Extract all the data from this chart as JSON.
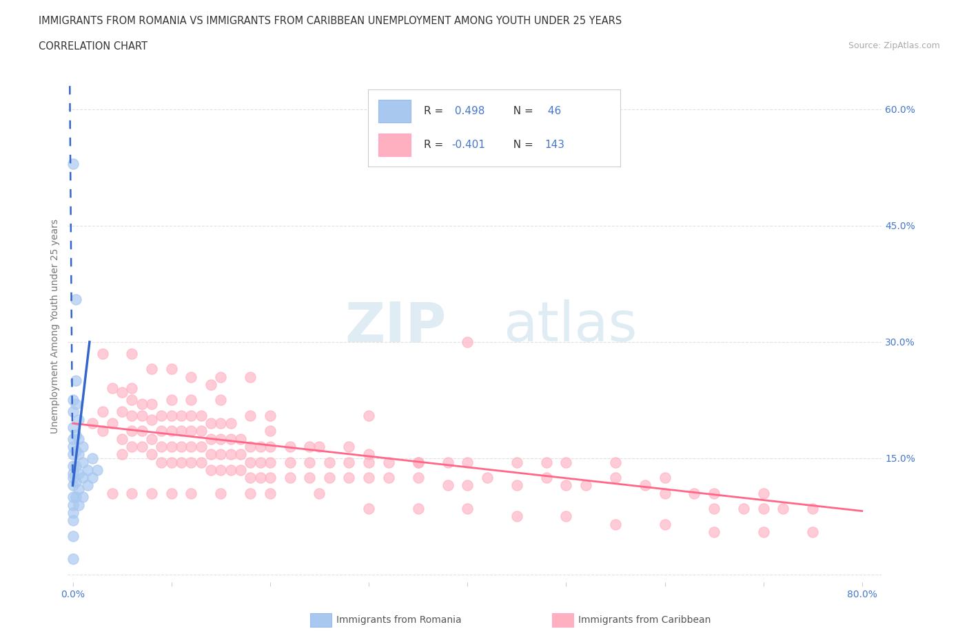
{
  "title_line1": "IMMIGRANTS FROM ROMANIA VS IMMIGRANTS FROM CARIBBEAN UNEMPLOYMENT AMONG YOUTH UNDER 25 YEARS",
  "title_line2": "CORRELATION CHART",
  "source_text": "Source: ZipAtlas.com",
  "ylabel": "Unemployment Among Youth under 25 years",
  "xlim": [
    -0.005,
    0.82
  ],
  "ylim": [
    -0.01,
    0.65
  ],
  "xtick_vals": [
    0.0,
    0.1,
    0.2,
    0.3,
    0.4,
    0.5,
    0.6,
    0.7,
    0.8
  ],
  "xtick_labels": [
    "0.0%",
    "",
    "",
    "",
    "",
    "",
    "",
    "",
    "80.0%"
  ],
  "ytick_vals": [
    0.0,
    0.15,
    0.3,
    0.45,
    0.6
  ],
  "ytick_labels": [
    "",
    "15.0%",
    "30.0%",
    "45.0%",
    "60.0%"
  ],
  "romania_R": 0.498,
  "romania_N": 46,
  "caribbean_R": -0.401,
  "caribbean_N": 143,
  "romania_color": "#a8c8f0",
  "caribbean_color": "#ffb0c0",
  "romania_line_color": "#3366cc",
  "caribbean_line_color": "#ff6688",
  "romania_line_solid": [
    [
      0.0,
      0.13
    ],
    [
      0.01,
      0.2
    ]
  ],
  "romania_line_dashed": [
    [
      0.0,
      0.13
    ],
    [
      -0.002,
      0.63
    ]
  ],
  "caribbean_line": [
    [
      0.0,
      0.195
    ],
    [
      0.8,
      0.082
    ]
  ],
  "romania_scatter": [
    [
      0.0,
      0.05
    ],
    [
      0.0,
      0.07
    ],
    [
      0.0,
      0.08
    ],
    [
      0.0,
      0.09
    ],
    [
      0.0,
      0.1
    ],
    [
      0.0,
      0.115
    ],
    [
      0.0,
      0.125
    ],
    [
      0.0,
      0.13
    ],
    [
      0.0,
      0.14
    ],
    [
      0.0,
      0.155
    ],
    [
      0.0,
      0.165
    ],
    [
      0.0,
      0.175
    ],
    [
      0.0,
      0.19
    ],
    [
      0.0,
      0.21
    ],
    [
      0.0,
      0.225
    ],
    [
      0.003,
      0.1
    ],
    [
      0.003,
      0.12
    ],
    [
      0.003,
      0.14
    ],
    [
      0.003,
      0.16
    ],
    [
      0.003,
      0.18
    ],
    [
      0.003,
      0.22
    ],
    [
      0.003,
      0.25
    ],
    [
      0.006,
      0.09
    ],
    [
      0.006,
      0.11
    ],
    [
      0.006,
      0.13
    ],
    [
      0.006,
      0.155
    ],
    [
      0.006,
      0.175
    ],
    [
      0.006,
      0.2
    ],
    [
      0.01,
      0.1
    ],
    [
      0.01,
      0.125
    ],
    [
      0.01,
      0.145
    ],
    [
      0.01,
      0.165
    ],
    [
      0.015,
      0.115
    ],
    [
      0.015,
      0.135
    ],
    [
      0.02,
      0.125
    ],
    [
      0.02,
      0.15
    ],
    [
      0.025,
      0.135
    ],
    [
      0.0,
      0.53
    ],
    [
      0.003,
      0.355
    ],
    [
      0.0,
      0.02
    ]
  ],
  "caribbean_scatter": [
    [
      0.02,
      0.195
    ],
    [
      0.03,
      0.21
    ],
    [
      0.03,
      0.185
    ],
    [
      0.04,
      0.195
    ],
    [
      0.04,
      0.24
    ],
    [
      0.05,
      0.155
    ],
    [
      0.05,
      0.175
    ],
    [
      0.05,
      0.21
    ],
    [
      0.05,
      0.235
    ],
    [
      0.06,
      0.165
    ],
    [
      0.06,
      0.185
    ],
    [
      0.06,
      0.205
    ],
    [
      0.06,
      0.225
    ],
    [
      0.06,
      0.24
    ],
    [
      0.07,
      0.165
    ],
    [
      0.07,
      0.185
    ],
    [
      0.07,
      0.205
    ],
    [
      0.07,
      0.22
    ],
    [
      0.08,
      0.155
    ],
    [
      0.08,
      0.175
    ],
    [
      0.08,
      0.2
    ],
    [
      0.08,
      0.22
    ],
    [
      0.09,
      0.145
    ],
    [
      0.09,
      0.165
    ],
    [
      0.09,
      0.185
    ],
    [
      0.09,
      0.205
    ],
    [
      0.1,
      0.145
    ],
    [
      0.1,
      0.165
    ],
    [
      0.1,
      0.185
    ],
    [
      0.1,
      0.205
    ],
    [
      0.1,
      0.225
    ],
    [
      0.11,
      0.145
    ],
    [
      0.11,
      0.165
    ],
    [
      0.11,
      0.185
    ],
    [
      0.11,
      0.205
    ],
    [
      0.12,
      0.145
    ],
    [
      0.12,
      0.165
    ],
    [
      0.12,
      0.185
    ],
    [
      0.12,
      0.205
    ],
    [
      0.12,
      0.225
    ],
    [
      0.13,
      0.145
    ],
    [
      0.13,
      0.165
    ],
    [
      0.13,
      0.185
    ],
    [
      0.13,
      0.205
    ],
    [
      0.14,
      0.135
    ],
    [
      0.14,
      0.155
    ],
    [
      0.14,
      0.175
    ],
    [
      0.14,
      0.195
    ],
    [
      0.15,
      0.135
    ],
    [
      0.15,
      0.155
    ],
    [
      0.15,
      0.175
    ],
    [
      0.15,
      0.195
    ],
    [
      0.15,
      0.255
    ],
    [
      0.16,
      0.135
    ],
    [
      0.16,
      0.155
    ],
    [
      0.16,
      0.175
    ],
    [
      0.16,
      0.195
    ],
    [
      0.17,
      0.135
    ],
    [
      0.17,
      0.155
    ],
    [
      0.17,
      0.175
    ],
    [
      0.18,
      0.125
    ],
    [
      0.18,
      0.145
    ],
    [
      0.18,
      0.165
    ],
    [
      0.18,
      0.255
    ],
    [
      0.19,
      0.125
    ],
    [
      0.19,
      0.145
    ],
    [
      0.19,
      0.165
    ],
    [
      0.2,
      0.125
    ],
    [
      0.2,
      0.145
    ],
    [
      0.2,
      0.165
    ],
    [
      0.2,
      0.205
    ],
    [
      0.22,
      0.125
    ],
    [
      0.22,
      0.145
    ],
    [
      0.22,
      0.165
    ],
    [
      0.24,
      0.125
    ],
    [
      0.24,
      0.145
    ],
    [
      0.24,
      0.165
    ],
    [
      0.26,
      0.125
    ],
    [
      0.26,
      0.145
    ],
    [
      0.28,
      0.125
    ],
    [
      0.28,
      0.145
    ],
    [
      0.28,
      0.165
    ],
    [
      0.3,
      0.125
    ],
    [
      0.3,
      0.145
    ],
    [
      0.3,
      0.205
    ],
    [
      0.32,
      0.125
    ],
    [
      0.32,
      0.145
    ],
    [
      0.35,
      0.125
    ],
    [
      0.35,
      0.145
    ],
    [
      0.38,
      0.115
    ],
    [
      0.38,
      0.145
    ],
    [
      0.4,
      0.115
    ],
    [
      0.4,
      0.145
    ],
    [
      0.4,
      0.3
    ],
    [
      0.42,
      0.125
    ],
    [
      0.45,
      0.115
    ],
    [
      0.45,
      0.145
    ],
    [
      0.48,
      0.125
    ],
    [
      0.48,
      0.145
    ],
    [
      0.5,
      0.115
    ],
    [
      0.5,
      0.145
    ],
    [
      0.52,
      0.115
    ],
    [
      0.55,
      0.125
    ],
    [
      0.55,
      0.145
    ],
    [
      0.58,
      0.115
    ],
    [
      0.6,
      0.125
    ],
    [
      0.6,
      0.105
    ],
    [
      0.63,
      0.105
    ],
    [
      0.65,
      0.105
    ],
    [
      0.65,
      0.085
    ],
    [
      0.68,
      0.085
    ],
    [
      0.7,
      0.085
    ],
    [
      0.7,
      0.105
    ],
    [
      0.72,
      0.085
    ],
    [
      0.75,
      0.085
    ],
    [
      0.03,
      0.285
    ],
    [
      0.06,
      0.285
    ],
    [
      0.08,
      0.265
    ],
    [
      0.1,
      0.265
    ],
    [
      0.12,
      0.255
    ],
    [
      0.14,
      0.245
    ],
    [
      0.15,
      0.225
    ],
    [
      0.18,
      0.205
    ],
    [
      0.2,
      0.185
    ],
    [
      0.25,
      0.165
    ],
    [
      0.3,
      0.155
    ],
    [
      0.35,
      0.145
    ],
    [
      0.04,
      0.105
    ],
    [
      0.06,
      0.105
    ],
    [
      0.08,
      0.105
    ],
    [
      0.1,
      0.105
    ],
    [
      0.12,
      0.105
    ],
    [
      0.15,
      0.105
    ],
    [
      0.18,
      0.105
    ],
    [
      0.2,
      0.105
    ],
    [
      0.25,
      0.105
    ],
    [
      0.3,
      0.085
    ],
    [
      0.35,
      0.085
    ],
    [
      0.4,
      0.085
    ],
    [
      0.45,
      0.075
    ],
    [
      0.5,
      0.075
    ],
    [
      0.55,
      0.065
    ],
    [
      0.6,
      0.065
    ],
    [
      0.65,
      0.055
    ],
    [
      0.7,
      0.055
    ],
    [
      0.75,
      0.055
    ]
  ],
  "watermark_zip": "ZIP",
  "watermark_atlas": "atlas",
  "legend_romania_label": "Immigrants from Romania",
  "legend_caribbean_label": "Immigrants from Caribbean",
  "background_color": "#ffffff",
  "grid_color": "#e0e0e0",
  "tick_color": "#4477cc"
}
